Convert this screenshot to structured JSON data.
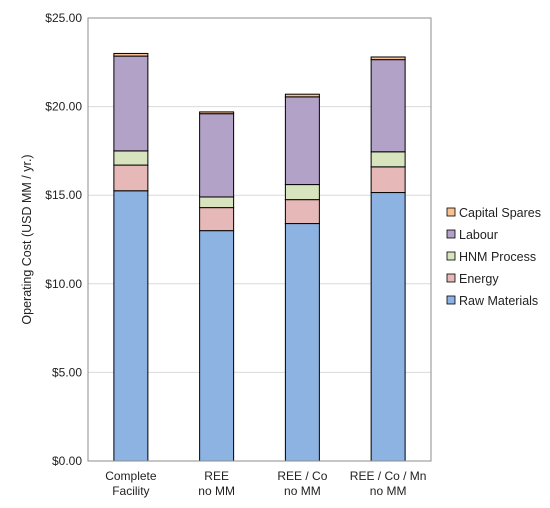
{
  "chart_data": {
    "type": "bar",
    "stacked": true,
    "title": "",
    "xlabel": "",
    "ylabel": "Operating Cost (USD MM / yr.)",
    "ylim": [
      0,
      25
    ],
    "yticks": [
      "$0.00",
      "$5.00",
      "$10.00",
      "$15.00",
      "$20.00",
      "$25.00"
    ],
    "ytick_values": [
      0,
      5,
      10,
      15,
      20,
      25
    ],
    "grid": true,
    "legend_position": "right",
    "categories": [
      [
        "Complete",
        "Facility"
      ],
      [
        "REE",
        "no MM"
      ],
      [
        "REE / Co",
        "no MM"
      ],
      [
        "REE / Co / Mn",
        "no MM"
      ]
    ],
    "series": [
      {
        "name": "Raw Materials",
        "color": "#8db3e2",
        "values": [
          15.25,
          13.0,
          13.4,
          15.15
        ]
      },
      {
        "name": "Energy",
        "color": "#e6b9b8",
        "values": [
          1.45,
          1.3,
          1.35,
          1.45
        ]
      },
      {
        "name": "HNM Process",
        "color": "#d7e4bd",
        "values": [
          0.8,
          0.6,
          0.85,
          0.85
        ]
      },
      {
        "name": "Labour",
        "color": "#b3a2c7",
        "values": [
          5.35,
          4.7,
          4.95,
          5.2
        ]
      },
      {
        "name": "Capital Spares",
        "color": "#fac090",
        "values": [
          0.15,
          0.1,
          0.15,
          0.15
        ]
      }
    ],
    "legend_order": [
      "Capital Spares",
      "Labour",
      "HNM Process",
      "Energy",
      "Raw Materials"
    ]
  }
}
